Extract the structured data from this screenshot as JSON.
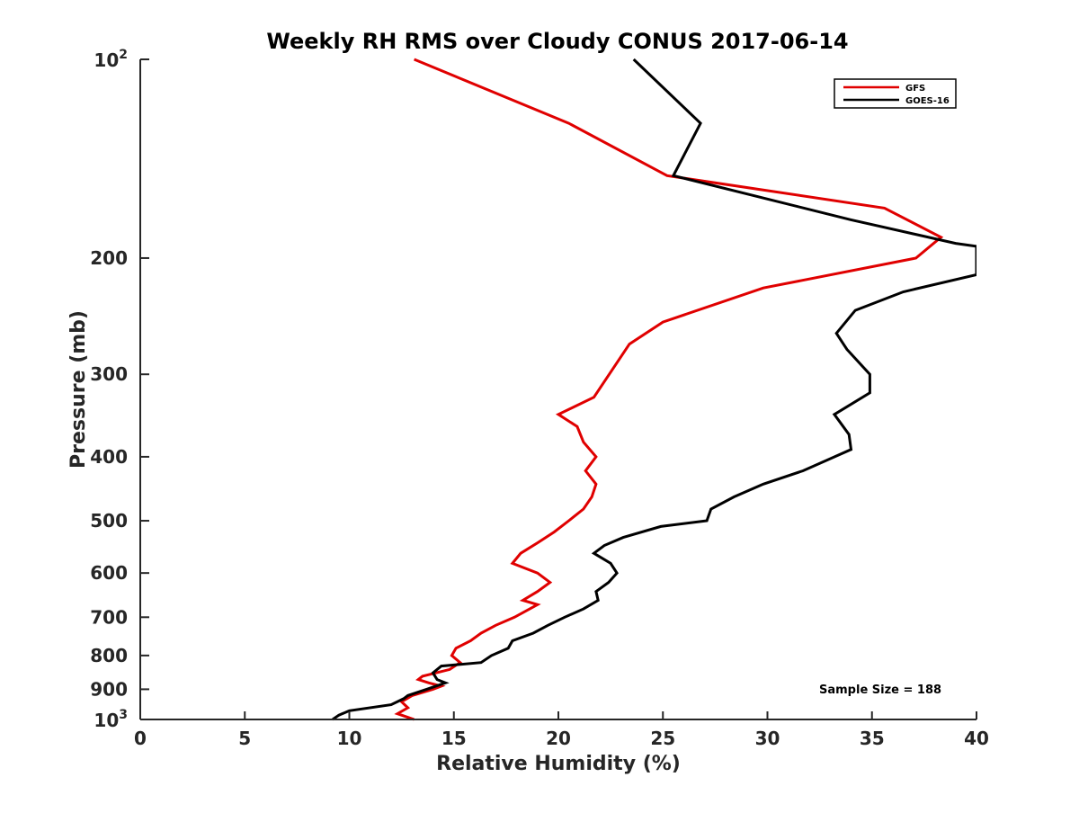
{
  "chart_data": {
    "type": "line",
    "title": "Weekly RH RMS over Cloudy CONUS 2017-06-14",
    "xlabel": "Relative Humidity (%)",
    "ylabel": "Pressure (mb)",
    "xlim": [
      0,
      40
    ],
    "ylim": [
      100,
      1000
    ],
    "y_scale": "log",
    "y_reversed": true,
    "x_ticks": [
      {
        "value": 0,
        "label": "0"
      },
      {
        "value": 5,
        "label": "5"
      },
      {
        "value": 10,
        "label": "10"
      },
      {
        "value": 15,
        "label": "15"
      },
      {
        "value": 20,
        "label": "20"
      },
      {
        "value": 25,
        "label": "25"
      },
      {
        "value": 30,
        "label": "30"
      },
      {
        "value": 35,
        "label": "35"
      },
      {
        "value": 40,
        "label": "40"
      }
    ],
    "y_ticks": [
      {
        "value": 100,
        "base": "10",
        "exp": "2"
      },
      {
        "value": 200,
        "label": "200"
      },
      {
        "value": 300,
        "label": "300"
      },
      {
        "value": 400,
        "label": "400"
      },
      {
        "value": 500,
        "label": "500"
      },
      {
        "value": 600,
        "label": "600"
      },
      {
        "value": 700,
        "label": "700"
      },
      {
        "value": 800,
        "label": "800"
      },
      {
        "value": 900,
        "label": "900"
      },
      {
        "value": 1000,
        "base": "10",
        "exp": "3"
      }
    ],
    "grid": false,
    "legend_position": "top-right",
    "annotation": "Sample Size = 188",
    "series": [
      {
        "name": "GFS",
        "color": "#e00000",
        "points": [
          [
            13.1,
            100
          ],
          [
            20.5,
            125
          ],
          [
            25.2,
            150
          ],
          [
            35.6,
            168
          ],
          [
            38.3,
            186
          ],
          [
            37.1,
            200
          ],
          [
            29.8,
            222
          ],
          [
            25.0,
            250
          ],
          [
            23.4,
            270
          ],
          [
            21.7,
            325
          ],
          [
            20.0,
            345
          ],
          [
            20.9,
            360
          ],
          [
            21.2,
            380
          ],
          [
            21.8,
            400
          ],
          [
            21.3,
            420
          ],
          [
            21.8,
            440
          ],
          [
            21.6,
            460
          ],
          [
            21.2,
            480
          ],
          [
            20.5,
            500
          ],
          [
            19.8,
            520
          ],
          [
            19.0,
            540
          ],
          [
            18.2,
            560
          ],
          [
            17.8,
            580
          ],
          [
            19.0,
            600
          ],
          [
            19.6,
            620
          ],
          [
            19.0,
            640
          ],
          [
            18.3,
            660
          ],
          [
            19.0,
            670
          ],
          [
            17.9,
            700
          ],
          [
            17.0,
            720
          ],
          [
            16.3,
            740
          ],
          [
            15.8,
            760
          ],
          [
            15.1,
            780
          ],
          [
            14.9,
            800
          ],
          [
            15.3,
            820
          ],
          [
            14.8,
            840
          ],
          [
            13.5,
            860
          ],
          [
            13.3,
            870
          ],
          [
            13.8,
            880
          ],
          [
            14.4,
            890
          ],
          [
            14.0,
            900
          ],
          [
            13.0,
            920
          ],
          [
            12.5,
            940
          ],
          [
            12.8,
            960
          ],
          [
            12.3,
            980
          ],
          [
            12.7,
            990
          ],
          [
            13.1,
            1000
          ]
        ]
      },
      {
        "name": "GOES-16",
        "color": "#000000",
        "points": [
          [
            23.6,
            100
          ],
          [
            26.8,
            125
          ],
          [
            25.5,
            150
          ],
          [
            34.0,
            175
          ],
          [
            39.0,
            190
          ],
          [
            40.0,
            192
          ],
          [
            40.0,
            212
          ],
          [
            36.5,
            225
          ],
          [
            34.2,
            240
          ],
          [
            33.3,
            260
          ],
          [
            33.8,
            275
          ],
          [
            34.9,
            300
          ],
          [
            34.9,
            320
          ],
          [
            33.2,
            345
          ],
          [
            33.9,
            370
          ],
          [
            34.0,
            390
          ],
          [
            31.7,
            420
          ],
          [
            29.8,
            440
          ],
          [
            28.4,
            460
          ],
          [
            27.3,
            480
          ],
          [
            27.1,
            500
          ],
          [
            24.9,
            510
          ],
          [
            23.1,
            530
          ],
          [
            22.2,
            545
          ],
          [
            21.7,
            560
          ],
          [
            22.5,
            580
          ],
          [
            22.8,
            600
          ],
          [
            22.4,
            620
          ],
          [
            21.8,
            640
          ],
          [
            21.9,
            660
          ],
          [
            21.2,
            680
          ],
          [
            20.3,
            700
          ],
          [
            19.5,
            720
          ],
          [
            18.8,
            740
          ],
          [
            17.8,
            760
          ],
          [
            17.6,
            780
          ],
          [
            16.8,
            800
          ],
          [
            16.3,
            820
          ],
          [
            14.4,
            830
          ],
          [
            14.0,
            850
          ],
          [
            14.2,
            870
          ],
          [
            14.6,
            880
          ],
          [
            13.7,
            900
          ],
          [
            12.8,
            920
          ],
          [
            12.6,
            930
          ],
          [
            12.0,
            950
          ],
          [
            10.0,
            970
          ],
          [
            9.5,
            985
          ],
          [
            9.2,
            1000
          ]
        ]
      }
    ]
  }
}
